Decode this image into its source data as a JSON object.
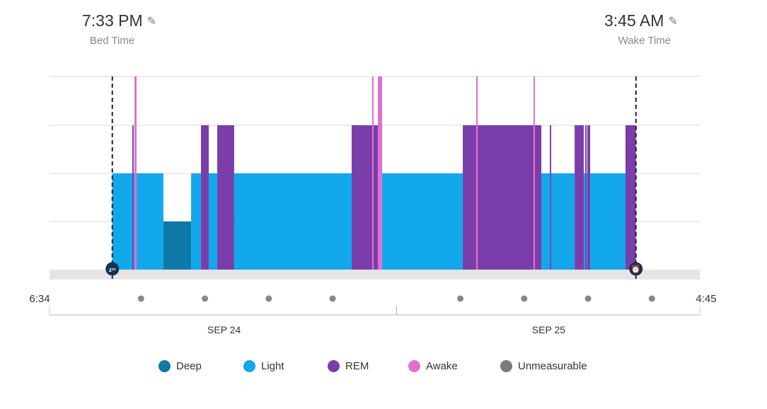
{
  "header": {
    "bed_time": "7:33 PM",
    "bed_label": "Bed Time",
    "wake_time": "3:45 AM",
    "wake_label": "Wake Time",
    "edit_icon": "pencil-icon"
  },
  "chart_data": {
    "type": "timeline",
    "start_label": "6:34",
    "end_label": "4:45",
    "span_minutes": 611,
    "bed_minute": 59,
    "wake_minute": 551,
    "levels": [
      "Deep",
      "Light",
      "REM",
      "Awake"
    ],
    "colors": {
      "Deep": "#0e78a8",
      "Light": "#12a8eb",
      "REM": "#7a3eaa",
      "Awake": "#e070d0",
      "Unmeasurable": "#7a7a7a"
    },
    "date_labels": [
      {
        "label": "SEP 24",
        "minute": 164
      },
      {
        "label": "SEP 25",
        "minute": 469
      }
    ],
    "hour_dots": [
      86,
      146,
      206,
      266,
      386,
      446,
      506,
      566
    ],
    "midnight_minute": 326,
    "segments": [
      {
        "stage": "Light",
        "start": 59,
        "end": 77.8
      },
      {
        "stage": "REM",
        "start": 77.8,
        "end": 79.1
      },
      {
        "stage": "Light",
        "start": 79.1,
        "end": 79.8
      },
      {
        "stage": "Awake",
        "start": 79.8,
        "end": 81.8
      },
      {
        "stage": "Light",
        "start": 81.8,
        "end": 107
      },
      {
        "stage": "Deep",
        "start": 107,
        "end": 133
      },
      {
        "stage": "Light",
        "start": 133,
        "end": 142.3
      },
      {
        "stage": "REM",
        "start": 142.3,
        "end": 149.6
      },
      {
        "stage": "Light",
        "start": 149.6,
        "end": 157.6
      },
      {
        "stage": "REM",
        "start": 157.6,
        "end": 173.5
      },
      {
        "stage": "Light",
        "start": 173.5,
        "end": 283.9
      },
      {
        "stage": "REM",
        "start": 283.9,
        "end": 303.2
      },
      {
        "stage": "Awake",
        "start": 303.2,
        "end": 304.5
      },
      {
        "stage": "REM",
        "start": 304.5,
        "end": 308.5
      },
      {
        "stage": "Awake",
        "start": 308.5,
        "end": 312.5
      },
      {
        "stage": "Light",
        "start": 312.5,
        "end": 388.3
      },
      {
        "stage": "REM",
        "start": 388.3,
        "end": 400.9
      },
      {
        "stage": "Awake",
        "start": 400.9,
        "end": 402.3
      },
      {
        "stage": "REM",
        "start": 402.3,
        "end": 454.8
      },
      {
        "stage": "Awake",
        "start": 454.8,
        "end": 456.1
      },
      {
        "stage": "REM",
        "start": 456.1,
        "end": 462.1
      },
      {
        "stage": "Light",
        "start": 462.1,
        "end": 470.1
      },
      {
        "stage": "REM",
        "start": 470.1,
        "end": 471.4
      },
      {
        "stage": "Light",
        "start": 471.4,
        "end": 493.4
      },
      {
        "stage": "REM",
        "start": 493.4,
        "end": 502
      },
      {
        "stage": "Light",
        "start": 502,
        "end": 503.3
      },
      {
        "stage": "REM",
        "start": 503.3,
        "end": 504.7
      },
      {
        "stage": "Light",
        "start": 504.7,
        "end": 505.3
      },
      {
        "stage": "REM",
        "start": 505.3,
        "end": 508
      },
      {
        "stage": "Light",
        "start": 508,
        "end": 541.2
      },
      {
        "stage": "REM",
        "start": 541.2,
        "end": 551
      }
    ]
  },
  "legend": [
    {
      "label": "Deep",
      "color": "#0e78a8"
    },
    {
      "label": "Light",
      "color": "#12a8eb"
    },
    {
      "label": "REM",
      "color": "#7a3eaa"
    },
    {
      "label": "Awake",
      "color": "#e070d0"
    },
    {
      "label": "Unmeasurable",
      "color": "#7a7a7a"
    }
  ]
}
